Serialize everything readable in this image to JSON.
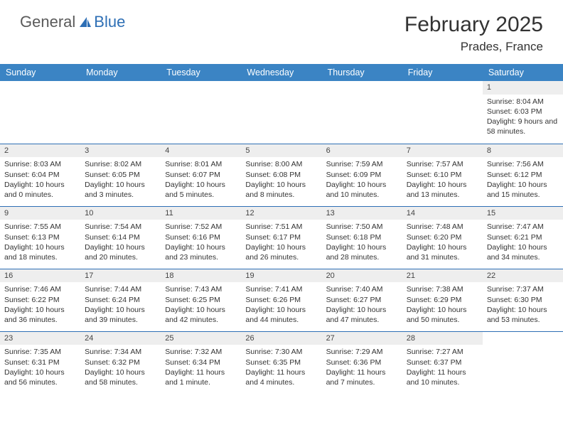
{
  "logo": {
    "general": "General",
    "blue": "Blue"
  },
  "title": "February 2025",
  "location": "Prades, France",
  "colors": {
    "header_bg": "#3b84c4",
    "row_border": "#2e6fb5",
    "daynum_bg": "#eeeeee",
    "text": "#333333",
    "logo_gray": "#5a5a5a",
    "logo_blue": "#2e6fb5"
  },
  "weekdays": [
    "Sunday",
    "Monday",
    "Tuesday",
    "Wednesday",
    "Thursday",
    "Friday",
    "Saturday"
  ],
  "labels": {
    "sunrise": "Sunrise:",
    "sunset": "Sunset:",
    "daylight": "Daylight:"
  },
  "weeks": [
    [
      null,
      null,
      null,
      null,
      null,
      null,
      {
        "n": "1",
        "sr": "8:04 AM",
        "ss": "6:03 PM",
        "dl": "9 hours and 58 minutes."
      }
    ],
    [
      {
        "n": "2",
        "sr": "8:03 AM",
        "ss": "6:04 PM",
        "dl": "10 hours and 0 minutes."
      },
      {
        "n": "3",
        "sr": "8:02 AM",
        "ss": "6:05 PM",
        "dl": "10 hours and 3 minutes."
      },
      {
        "n": "4",
        "sr": "8:01 AM",
        "ss": "6:07 PM",
        "dl": "10 hours and 5 minutes."
      },
      {
        "n": "5",
        "sr": "8:00 AM",
        "ss": "6:08 PM",
        "dl": "10 hours and 8 minutes."
      },
      {
        "n": "6",
        "sr": "7:59 AM",
        "ss": "6:09 PM",
        "dl": "10 hours and 10 minutes."
      },
      {
        "n": "7",
        "sr": "7:57 AM",
        "ss": "6:10 PM",
        "dl": "10 hours and 13 minutes."
      },
      {
        "n": "8",
        "sr": "7:56 AM",
        "ss": "6:12 PM",
        "dl": "10 hours and 15 minutes."
      }
    ],
    [
      {
        "n": "9",
        "sr": "7:55 AM",
        "ss": "6:13 PM",
        "dl": "10 hours and 18 minutes."
      },
      {
        "n": "10",
        "sr": "7:54 AM",
        "ss": "6:14 PM",
        "dl": "10 hours and 20 minutes."
      },
      {
        "n": "11",
        "sr": "7:52 AM",
        "ss": "6:16 PM",
        "dl": "10 hours and 23 minutes."
      },
      {
        "n": "12",
        "sr": "7:51 AM",
        "ss": "6:17 PM",
        "dl": "10 hours and 26 minutes."
      },
      {
        "n": "13",
        "sr": "7:50 AM",
        "ss": "6:18 PM",
        "dl": "10 hours and 28 minutes."
      },
      {
        "n": "14",
        "sr": "7:48 AM",
        "ss": "6:20 PM",
        "dl": "10 hours and 31 minutes."
      },
      {
        "n": "15",
        "sr": "7:47 AM",
        "ss": "6:21 PM",
        "dl": "10 hours and 34 minutes."
      }
    ],
    [
      {
        "n": "16",
        "sr": "7:46 AM",
        "ss": "6:22 PM",
        "dl": "10 hours and 36 minutes."
      },
      {
        "n": "17",
        "sr": "7:44 AM",
        "ss": "6:24 PM",
        "dl": "10 hours and 39 minutes."
      },
      {
        "n": "18",
        "sr": "7:43 AM",
        "ss": "6:25 PM",
        "dl": "10 hours and 42 minutes."
      },
      {
        "n": "19",
        "sr": "7:41 AM",
        "ss": "6:26 PM",
        "dl": "10 hours and 44 minutes."
      },
      {
        "n": "20",
        "sr": "7:40 AM",
        "ss": "6:27 PM",
        "dl": "10 hours and 47 minutes."
      },
      {
        "n": "21",
        "sr": "7:38 AM",
        "ss": "6:29 PM",
        "dl": "10 hours and 50 minutes."
      },
      {
        "n": "22",
        "sr": "7:37 AM",
        "ss": "6:30 PM",
        "dl": "10 hours and 53 minutes."
      }
    ],
    [
      {
        "n": "23",
        "sr": "7:35 AM",
        "ss": "6:31 PM",
        "dl": "10 hours and 56 minutes."
      },
      {
        "n": "24",
        "sr": "7:34 AM",
        "ss": "6:32 PM",
        "dl": "10 hours and 58 minutes."
      },
      {
        "n": "25",
        "sr": "7:32 AM",
        "ss": "6:34 PM",
        "dl": "11 hours and 1 minute."
      },
      {
        "n": "26",
        "sr": "7:30 AM",
        "ss": "6:35 PM",
        "dl": "11 hours and 4 minutes."
      },
      {
        "n": "27",
        "sr": "7:29 AM",
        "ss": "6:36 PM",
        "dl": "11 hours and 7 minutes."
      },
      {
        "n": "28",
        "sr": "7:27 AM",
        "ss": "6:37 PM",
        "dl": "11 hours and 10 minutes."
      },
      null
    ]
  ]
}
